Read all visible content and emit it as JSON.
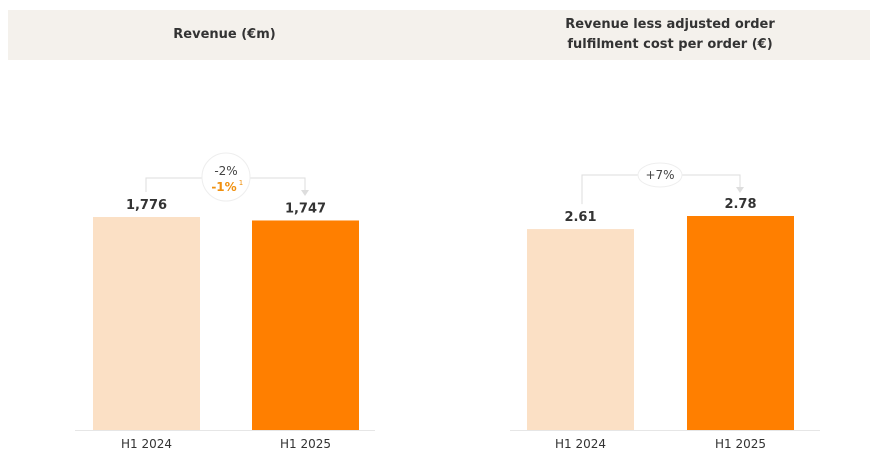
{
  "colors": {
    "prior": "#fbe0c5",
    "current": "#ff7f00",
    "header_bg": "#f4f1ec",
    "accent_text": "#f0900f"
  },
  "chart_data": [
    {
      "type": "bar",
      "title": "Revenue (€m)",
      "categories": [
        "H1 2024",
        "H1 2025"
      ],
      "values": [
        1776,
        1747
      ],
      "value_labels": [
        "1,776",
        "1,747"
      ],
      "ylim": [
        0,
        1776
      ],
      "change": {
        "primary": "-2%",
        "secondary": "-1%",
        "footnote": "1"
      },
      "grid": false
    },
    {
      "type": "bar",
      "title": "Revenue less adjusted order fulfilment cost per order (€)",
      "title_lines": [
        "Revenue less adjusted order",
        "fulfilment cost per order (€)"
      ],
      "categories": [
        "H1 2024",
        "H1 2025"
      ],
      "values": [
        2.61,
        2.78
      ],
      "value_labels": [
        "2.61",
        "2.78"
      ],
      "ylim": [
        0,
        2.78
      ],
      "change": {
        "primary": "+7%"
      },
      "grid": false
    }
  ]
}
